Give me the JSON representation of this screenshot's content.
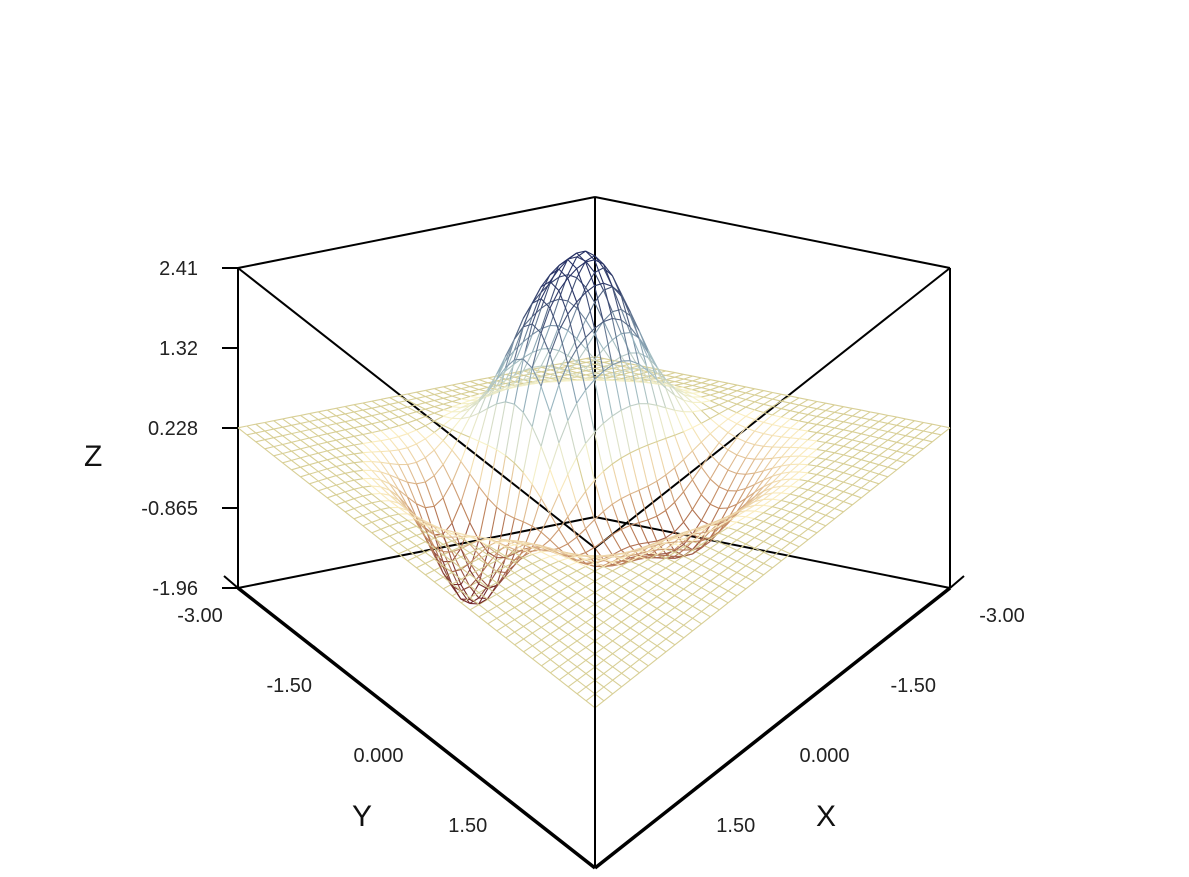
{
  "chart_data": {
    "type": "surface",
    "title": "",
    "xlabel": "X",
    "ylabel": "Y",
    "zlabel": "Z",
    "xlim": [
      -3.0,
      3.0
    ],
    "ylim": [
      -3.0,
      3.0
    ],
    "zlim": [
      -1.96,
      2.41
    ],
    "x_ticks": [
      "-3.00",
      "-1.50",
      "0.000",
      "1.50"
    ],
    "y_ticks": [
      "-3.00",
      "-1.50",
      "0.000",
      "1.50"
    ],
    "z_ticks": [
      "2.41",
      "1.32",
      "0.228",
      "-0.865",
      "-1.96"
    ],
    "grid_points": 40,
    "surface": {
      "description_function": "sum of gaussian bumps",
      "bumps": [
        {
          "x": -1.0,
          "y": -1.0,
          "amplitude": 2.2,
          "sigma": 0.55
        },
        {
          "x": 0.0,
          "y": -1.0,
          "amplitude": 1.6,
          "sigma": 0.5
        },
        {
          "x": 1.0,
          "y": -1.0,
          "amplitude": -1.9,
          "sigma": 0.5
        },
        {
          "x": -1.0,
          "y": 0.5,
          "amplitude": -1.2,
          "sigma": 0.6
        },
        {
          "x": 0.3,
          "y": 0.3,
          "amplitude": -0.8,
          "sigma": 0.55
        }
      ]
    },
    "colormap": {
      "low": "#9e1b2d",
      "mid_low": "#e8a070",
      "mid": "#fff6c8",
      "mid_high": "#bfe3f0",
      "high": "#3a4a9a",
      "flat": "#d8cf96"
    }
  }
}
